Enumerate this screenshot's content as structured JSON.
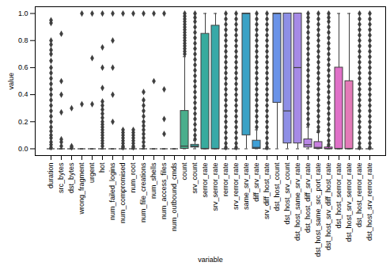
{
  "chart_data": {
    "type": "box",
    "x_label": "variable",
    "y_label": "value",
    "categories": [
      "duration",
      "src_bytes",
      "dst_bytes",
      "wrong_fragment",
      "urgent",
      "hot",
      "num_failed_logins",
      "num_compromised",
      "num_root",
      "num_file_creations",
      "num_shells",
      "num_access_files",
      "num_outbound_cmds",
      "count",
      "srv_count",
      "serror_rate",
      "srv_serror_rate",
      "rerror_rate",
      "srv_rerror_rate",
      "same_srv_rate",
      "diff_srv_rate",
      "srv_diff_host_rate",
      "dst_host_count",
      "dst_host_srv_count",
      "dst_host_same_srv_rate",
      "dst_host_diff_srv_rate",
      "dst_host_same_src_port_rate",
      "dst_host_srv_diff_host_rate",
      "dst_host_serror_rate",
      "dst_host_srv_serror_rate",
      "dst_host_rerror_rate",
      "dst_host_srv_rerror_rate"
    ],
    "colors": [
      "#f77189",
      "#f7754f",
      "#e68332",
      "#d58c32",
      "#c69432",
      "#b89b31",
      "#a9a131",
      "#97a731",
      "#80ac31",
      "#5db131",
      "#32b44f",
      "#33b27d",
      "#34b093",
      "#4aae8c",
      "#36acab",
      "#37ab9e",
      "#38a9a8",
      "#39a7c5",
      "#3aa4cf",
      "#3ba2c6",
      "#3e9fd7",
      "#5a99f4",
      "#6a93e8",
      "#8e8fe6",
      "#a68ae6",
      "#b886e6",
      "#c87fe0",
      "#f061ec",
      "#e070c8",
      "#e47ab8",
      "#f66eb5",
      "#f670a3"
    ],
    "whisker_low": [
      0,
      0,
      0,
      0,
      0,
      0,
      0,
      0,
      0,
      0,
      0,
      0,
      0,
      0,
      0,
      0,
      0,
      0,
      0,
      0,
      0,
      0,
      0,
      0,
      0,
      0,
      0,
      0,
      0,
      0,
      0,
      0
    ],
    "q1": [
      0,
      0,
      0,
      0,
      0,
      0,
      0,
      0,
      0,
      0,
      0,
      0,
      0,
      0,
      0.01,
      0,
      0,
      0,
      0,
      0.1,
      0,
      0,
      0.34,
      0.04,
      0.04,
      0.01,
      0,
      0,
      0,
      0,
      0,
      0
    ],
    "median": [
      0,
      0,
      0,
      0,
      0,
      0,
      0,
      0,
      0,
      0,
      0,
      0,
      0,
      0.02,
      0.02,
      0,
      0,
      0,
      0,
      1.0,
      0.01,
      0,
      1.0,
      0.28,
      0.6,
      0.03,
      0.01,
      0,
      0,
      0,
      0,
      0
    ],
    "q3": [
      0,
      0,
      0,
      0,
      0,
      0,
      0,
      0,
      0,
      0,
      0,
      0,
      0,
      0.28,
      0.03,
      0.85,
      0.91,
      0,
      0,
      1.0,
      0.06,
      0,
      1.0,
      1.0,
      1.0,
      0.07,
      0.05,
      0.01,
      0.6,
      0.5,
      0,
      0
    ],
    "whisker_high": [
      0,
      0,
      0,
      0,
      0,
      0,
      0,
      0,
      0,
      0,
      0,
      0,
      0,
      0.68,
      0.06,
      1.0,
      1.0,
      0,
      0,
      1.0,
      0.14,
      0,
      1.0,
      1.0,
      1.0,
      0.16,
      0.12,
      0.02,
      1.0,
      1.0,
      0,
      0
    ],
    "outliers": [
      [
        0.01,
        0.03,
        0.05,
        0.08,
        0.1,
        0.13,
        0.16,
        0.2,
        0.24,
        0.28,
        0.32,
        0.36,
        0.4,
        0.44,
        0.48,
        0.52,
        0.56,
        0.6,
        0.65,
        0.7,
        0.73,
        0.77,
        0.8,
        0.93,
        0.95
      ],
      [
        0.02,
        0.05,
        0.07,
        0.27,
        0.4,
        0.5,
        0.85
      ],
      [
        0.01,
        0.02,
        0.3
      ],
      [
        0.33,
        1.0
      ],
      [
        0.33,
        0.67,
        1.0
      ],
      [
        0.02,
        0.04,
        0.06,
        0.08,
        0.1,
        0.12,
        0.14,
        0.16,
        0.18,
        0.2,
        0.23,
        0.26,
        0.29,
        0.32,
        0.35,
        0.45,
        0.6,
        0.75,
        1.0
      ],
      [
        0.2,
        0.4,
        0.6,
        0.8,
        1.0
      ],
      [
        0.01,
        0.02,
        0.04,
        0.06,
        0.08,
        0.1,
        0.12,
        0.14,
        1.0
      ],
      [
        0.01,
        0.02,
        0.04,
        0.06,
        0.08,
        0.1,
        0.12,
        0.14,
        1.0
      ],
      [
        0.02,
        0.05,
        0.08,
        0.11,
        0.14,
        0.17,
        0.2,
        0.24,
        0.28,
        0.32,
        0.36,
        0.42,
        1.0
      ],
      [
        0.5,
        1.0
      ],
      [
        0.11,
        0.22,
        0.44,
        1.0
      ],
      [],
      [
        0.7,
        0.72,
        0.74,
        0.76,
        0.78,
        0.8,
        0.82,
        0.84,
        0.86,
        0.88,
        0.9,
        0.92,
        0.94,
        0.96,
        0.98,
        1.0
      ],
      [
        0.07,
        0.1,
        0.14,
        0.18,
        0.22,
        0.26,
        0.3,
        0.34,
        0.38,
        0.42,
        0.46,
        0.5,
        0.54,
        0.58,
        0.62,
        0.66,
        0.7,
        0.74,
        0.78,
        0.82,
        0.86,
        0.9,
        0.94,
        0.97,
        1.0
      ],
      [],
      [],
      [
        0.01,
        0.04,
        0.08,
        0.12,
        0.16,
        0.2,
        0.24,
        0.28,
        0.32,
        0.36,
        0.4,
        0.44,
        0.48,
        0.52,
        0.56,
        0.6,
        0.64,
        0.68,
        0.72,
        0.76,
        0.8,
        0.84,
        0.88,
        0.92,
        0.96,
        1.0
      ],
      [
        0.01,
        0.04,
        0.08,
        0.12,
        0.16,
        0.2,
        0.24,
        0.28,
        0.32,
        0.36,
        0.4,
        0.44,
        0.48,
        0.52,
        0.56,
        0.6,
        0.64,
        0.68,
        0.72,
        0.76,
        0.8,
        0.84,
        0.88,
        0.92,
        0.96,
        1.0
      ],
      [],
      [
        0.16,
        0.2,
        0.24,
        0.28,
        0.32,
        0.36,
        0.4,
        0.44,
        0.48,
        0.52,
        0.56,
        0.6,
        0.64,
        0.68,
        0.72,
        0.76,
        0.8,
        0.84,
        0.88,
        0.92,
        0.96,
        1.0
      ],
      [
        0.01,
        0.04,
        0.08,
        0.12,
        0.16,
        0.2,
        0.24,
        0.28,
        0.32,
        0.36,
        0.4,
        0.44,
        0.48,
        0.52,
        0.56,
        0.6,
        0.64,
        0.68,
        0.72,
        0.76,
        0.8,
        0.84,
        0.88,
        0.92,
        0.96,
        1.0
      ],
      [],
      [],
      [],
      [
        0.18,
        0.22,
        0.26,
        0.3,
        0.34,
        0.38,
        0.42,
        0.46,
        0.5,
        0.54,
        0.58,
        0.62,
        0.66,
        0.7,
        0.74,
        0.78,
        0.82,
        0.86,
        0.9,
        0.94,
        0.97,
        1.0
      ],
      [
        0.13,
        0.16,
        0.2,
        0.24,
        0.28,
        0.32,
        0.36,
        0.4,
        0.44,
        0.48,
        0.52,
        0.56,
        0.6,
        0.64,
        0.68,
        0.72,
        0.76,
        0.8,
        0.84,
        0.88,
        0.92,
        0.96,
        1.0
      ],
      [
        0.03,
        0.06,
        0.1,
        0.14,
        0.18,
        0.22,
        0.26,
        0.3,
        0.34,
        0.38,
        0.42,
        0.46,
        0.5,
        0.54,
        0.58,
        0.62,
        0.66,
        0.7,
        0.74,
        0.78,
        0.82,
        0.86,
        0.9,
        0.94,
        0.97,
        1.0
      ],
      [],
      [],
      [
        0.01,
        0.04,
        0.08,
        0.12,
        0.16,
        0.2,
        0.24,
        0.28,
        0.32,
        0.36,
        0.4,
        0.44,
        0.48,
        0.52,
        0.56,
        0.6,
        0.64,
        0.68,
        0.72,
        0.76,
        0.8,
        0.84,
        0.88,
        0.92,
        0.96,
        1.0
      ],
      [
        0.01,
        0.04,
        0.08,
        0.12,
        0.16,
        0.2,
        0.24,
        0.28,
        0.32,
        0.36,
        0.4,
        0.44,
        0.48,
        0.52,
        0.56,
        0.6,
        0.64,
        0.68,
        0.72,
        0.76,
        0.8,
        0.84,
        0.88,
        0.92,
        0.96,
        1.0
      ]
    ],
    "marker": "diamond",
    "ylim": [
      -0.05,
      1.05
    ],
    "yticks": [
      {
        "value": 0,
        "label": "0.0"
      },
      {
        "value": 0.2,
        "label": "0.2"
      },
      {
        "value": 0.4,
        "label": "0.4"
      },
      {
        "value": 0.6,
        "label": "0.6"
      },
      {
        "value": 0.8,
        "label": "0.8"
      },
      {
        "value": 1,
        "label": "1.0"
      }
    ]
  }
}
